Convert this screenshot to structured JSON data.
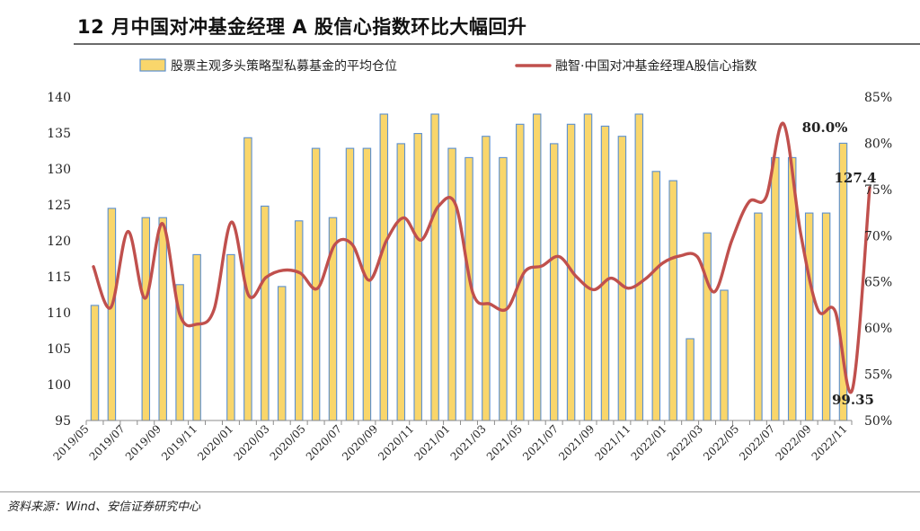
{
  "title": "12 月中国对冲基金经理 A 股信心指数环比大幅回升",
  "source": "资料来源：Wind、安信证券研究中心",
  "chart_data": {
    "type": "bar+line",
    "series": [
      {
        "name": "股票主观多头策略型私募基金的平均仓位",
        "kind": "bar",
        "axis": "right",
        "color": "#F9D66B",
        "edge": "#5B8FD0",
        "values": [
          0.6245,
          0.7295,
          0.7195,
          0.7195,
          0.647,
          0.6795,
          0.6795,
          0.806,
          0.732,
          0.645,
          0.716,
          0.7945,
          0.7195,
          0.7945,
          0.7945,
          0.8315,
          0.7995,
          0.8105,
          0.8315,
          0.7945,
          0.7845,
          0.8075,
          0.7845,
          0.8205,
          0.8315,
          0.7995,
          0.8205,
          0.8315,
          0.8185,
          0.8075,
          0.8315,
          0.7695,
          0.7595,
          0.5885,
          0.703,
          0.641,
          0.7245,
          0.7845,
          0.7845,
          0.7245,
          0.7245,
          0.8
        ]
      },
      {
        "name": "融智·中国对冲基金经理A股信心指数",
        "kind": "line",
        "axis": "left",
        "color": "#C0504D",
        "values": [
          116.4,
          110.7,
          121.3,
          112.0,
          122.4,
          109.8,
          108.4,
          110.5,
          122.6,
          112.4,
          114.9,
          115.9,
          115.5,
          113.4,
          119.5,
          119.5,
          114.5,
          120.1,
          123.2,
          120.1,
          124.8,
          125.0,
          112.7,
          111.2,
          110.6,
          115.7,
          116.5,
          117.8,
          115.0,
          113.2,
          114.8,
          113.4,
          114.7,
          116.9,
          117.9,
          117.8,
          112.9,
          120.0,
          125.4,
          126.1,
          136.3,
          121.0,
          110.4,
          110.2,
          99.35,
          127.4
        ]
      }
    ],
    "x_tick_labels": [
      "2019/05",
      "2019/07",
      "2019/09",
      "2019/11",
      "2020/01",
      "2020/03",
      "2020/05",
      "2020/07",
      "2020/09",
      "2020/11",
      "2021/01",
      "2021/03",
      "2021/05",
      "2021/07",
      "2021/09",
      "2021/11",
      "2022/01",
      "2022/03",
      "2022/05",
      "2022/07",
      "2022/09",
      "2022/11"
    ],
    "left_axis": {
      "min": 95,
      "max": 140,
      "step": 5,
      "ticks": [
        "95",
        "100",
        "105",
        "110",
        "115",
        "120",
        "125",
        "130",
        "135",
        "140"
      ]
    },
    "right_axis": {
      "min": 0.5,
      "max": 0.85,
      "step": 0.05,
      "ticks": [
        "50%",
        "55%",
        "60%",
        "65%",
        "70%",
        "75%",
        "80%",
        "85%"
      ]
    },
    "annotations": [
      "80.0%",
      "127.4",
      "99.35"
    ],
    "legend_position": "top",
    "grid": false
  }
}
